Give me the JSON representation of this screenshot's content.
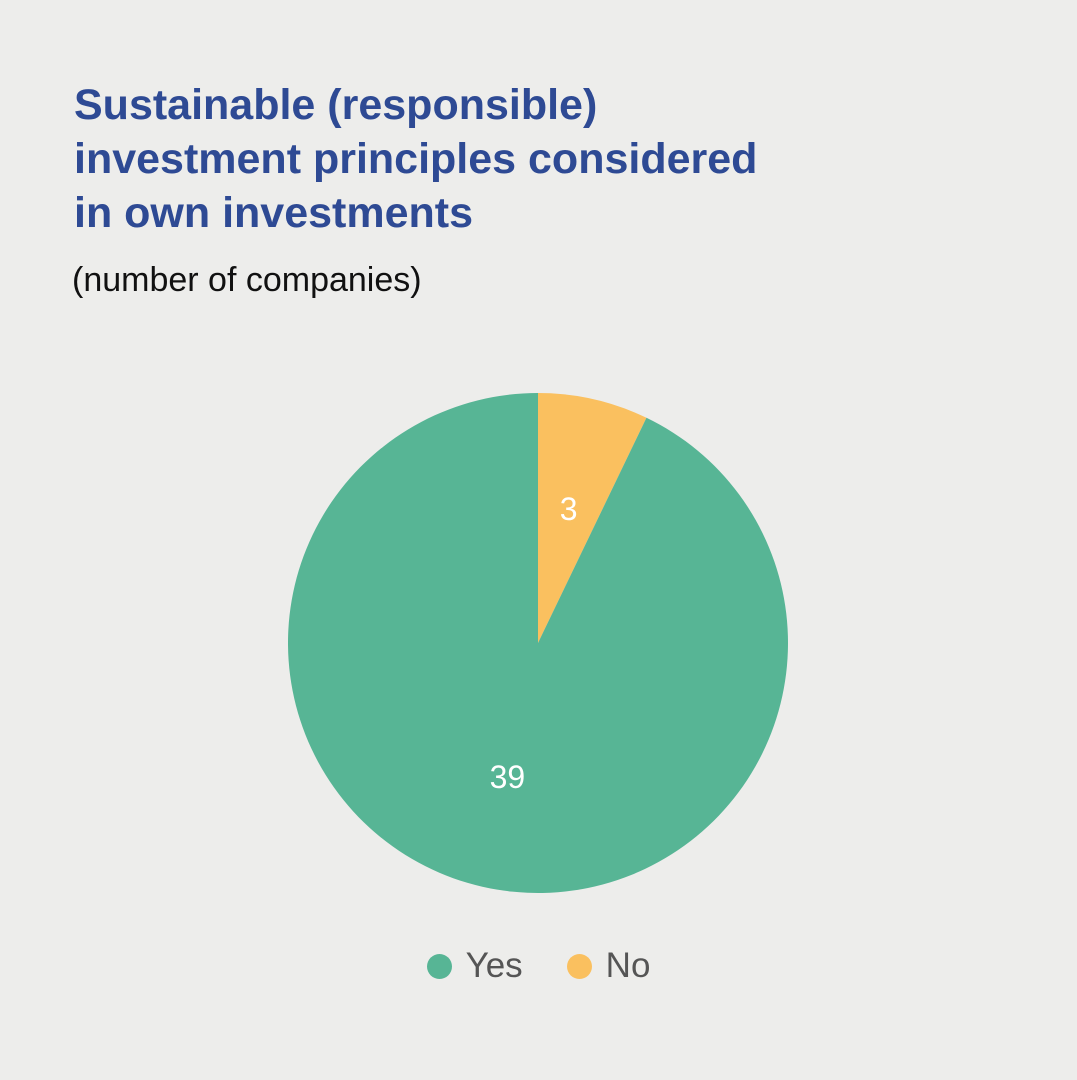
{
  "chart_data": {
    "type": "pie",
    "title": "Sustainable (responsible) investment principles considered in own investments",
    "title_lines": [
      "Sustainable (responsible)",
      "investment principles considered",
      "in own investments"
    ],
    "subtitle": "(number of companies)",
    "categories": [
      "Yes",
      "No"
    ],
    "values": [
      39,
      3
    ],
    "data_labels": [
      "39",
      "3"
    ],
    "colors": [
      "#57B595",
      "#FAC05F"
    ],
    "legend": {
      "position": "bottom",
      "entries": [
        "Yes",
        "No"
      ]
    }
  }
}
